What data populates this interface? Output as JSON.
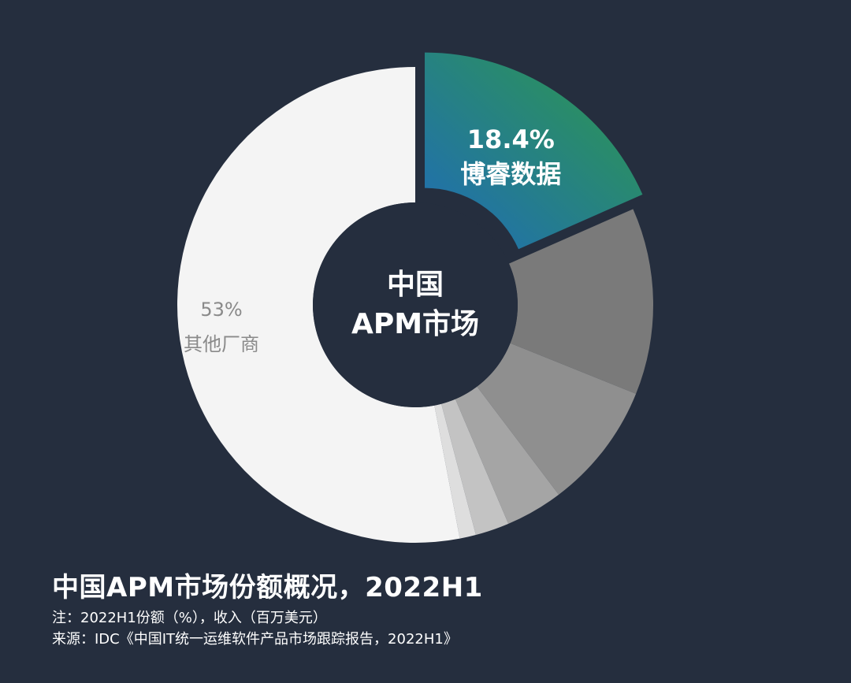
{
  "chart_data": {
    "type": "pie",
    "donut": true,
    "center_label": [
      "中国",
      "APM市场"
    ],
    "slices": [
      {
        "label": "博睿数据",
        "value": 18.4,
        "value_label": "18.4%",
        "color_start": "#1f6bb8",
        "color_end": "#2e9a48",
        "exploded": true
      },
      {
        "label": "",
        "value": 12.7,
        "color": "#7a7a7a"
      },
      {
        "label": "",
        "value": 8.6,
        "color": "#8f8f8f"
      },
      {
        "label": "",
        "value": 3.9,
        "color": "#a5a5a5"
      },
      {
        "label": "",
        "value": 2.3,
        "color": "#c3c3c3"
      },
      {
        "label": "",
        "value": 1.1,
        "color": "#dedede"
      },
      {
        "label": "其他厂商",
        "value": 53,
        "value_label": "53%",
        "color": "#f4f4f4"
      }
    ]
  },
  "title": "中国APM市场份额概况，2022H1",
  "note": "注：2022H1份额（%），收入（百万美元）",
  "source": "来源：IDC《中国IT统一运维软件产品市场跟踪报告，2022H1》",
  "colors": {
    "background": "#252e3e"
  }
}
